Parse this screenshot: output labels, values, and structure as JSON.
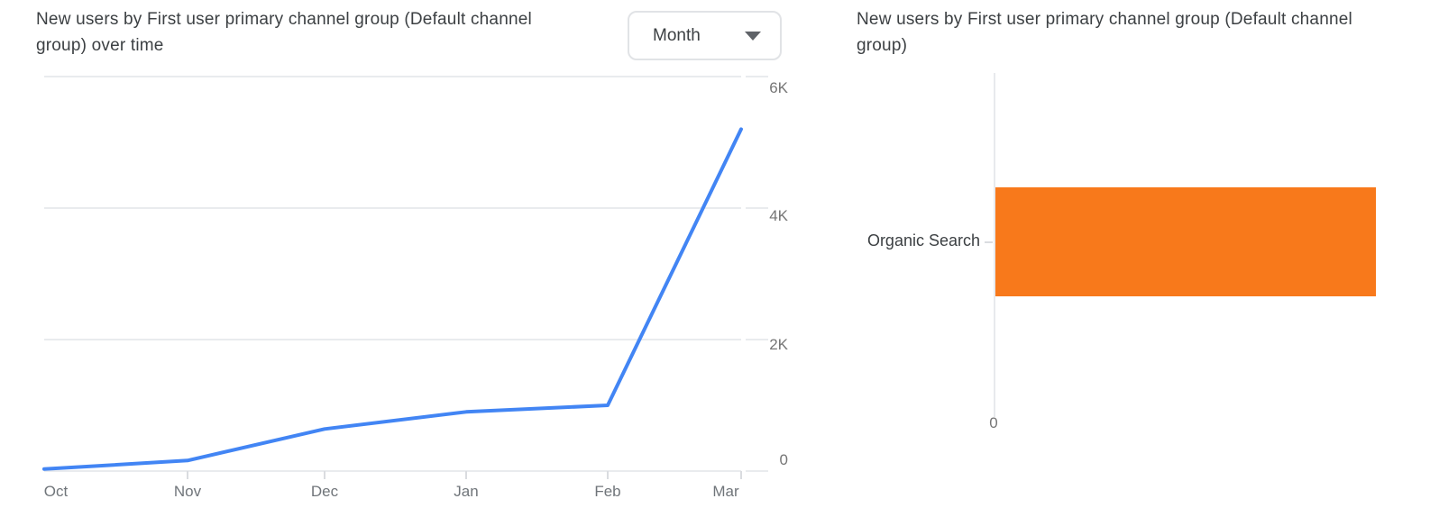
{
  "left_chart_card": {
    "title": "New users by First user primary channel group (Default channel group) over time",
    "title_lines": [
      "New users by First user primary channel group (Default channel",
      "group) over time"
    ],
    "granularity_dropdown": {
      "value": "Month"
    }
  },
  "right_chart_card": {
    "title": "New users by First user primary channel group (Default channel group)",
    "title_lines": [
      "New users by First user primary channel group (Default channel",
      "group)"
    ]
  },
  "chart_data": [
    {
      "type": "line",
      "title": "New users by First user primary channel group (Default channel group) over time",
      "x": [
        "Oct",
        "Nov",
        "Dec",
        "Jan",
        "Feb",
        "Mar"
      ],
      "series": [
        {
          "name": "New users",
          "values": [
            30,
            160,
            640,
            900,
            1000,
            5200
          ]
        }
      ],
      "values_estimated": true,
      "ylim": [
        0,
        6000
      ],
      "ytick_labels": [
        "0",
        "2K",
        "4K",
        "6K"
      ],
      "ytick_side": "right",
      "grid": "horizontal",
      "legend": false,
      "line_color": "#4285F4"
    },
    {
      "type": "bar",
      "orientation": "horizontal",
      "title": "New users by First user primary channel group (Default channel group)",
      "categories": [
        "Organic Search"
      ],
      "values": [
        7930
      ],
      "values_estimated": true,
      "xtick_labels_visible": [
        "0"
      ],
      "xlim": [
        0,
        8500
      ],
      "legend": false,
      "bar_color": "#F8791B"
    }
  ],
  "colors": {
    "background": "#FFFFFF",
    "title_text": "#3C4043",
    "axis_text": "#757575",
    "gridline": "#E9EBEE",
    "dropdown_border": "#E1E3E6",
    "accent_line": "#4285F4",
    "accent_bar": "#F8791B"
  }
}
